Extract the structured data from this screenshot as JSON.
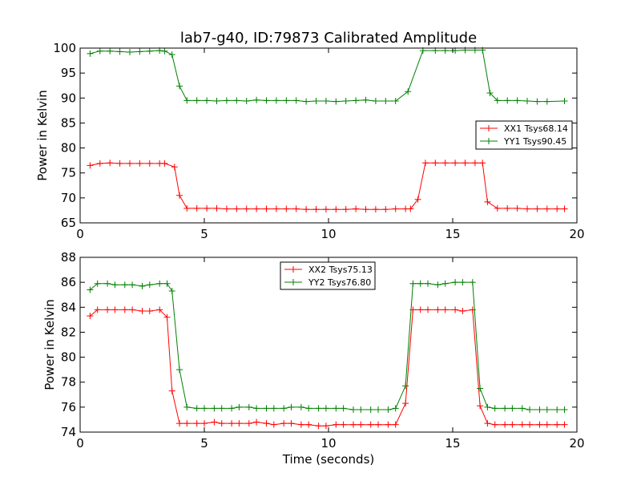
{
  "chart_data": [
    {
      "type": "line",
      "title": "lab7-g40, ID:79873 Calibrated Amplitude",
      "xlabel": "",
      "ylabel": "Power in Kelvin",
      "xlim": [
        0,
        20
      ],
      "ylim": [
        65,
        100
      ],
      "xticks": [
        0,
        5,
        10,
        15,
        20
      ],
      "yticks": [
        65,
        70,
        75,
        80,
        85,
        90,
        95,
        100
      ],
      "grid": false,
      "legend": "center-right",
      "x": [
        0.3,
        0.7,
        1.1,
        1.5,
        1.9,
        2.3,
        2.7,
        3.1,
        3.5,
        3.9,
        4.3,
        4.7,
        5.1,
        5.5,
        5.9,
        6.3,
        6.7,
        7.1,
        7.5,
        7.9,
        8.3,
        8.7,
        9.1,
        9.5,
        9.9,
        10.3,
        10.7,
        11.1,
        11.5,
        11.9,
        12.3,
        12.7,
        13.1,
        13.5,
        13.9,
        14.3,
        14.7,
        15.1,
        15.5,
        15.9,
        16.3,
        16.7,
        17.1,
        17.5,
        17.9,
        18.3,
        18.7,
        19.1,
        19.5
      ],
      "series": [
        {
          "name": "XX1 Tsys68.14",
          "color": "#ff0000",
          "values": [
            76.5,
            76.9,
            77.0,
            76.9,
            76.9,
            76.9,
            76.9,
            76.9,
            76.9,
            76.2,
            70.5,
            67.9,
            67.9,
            67.9,
            67.9,
            67.8,
            67.8,
            67.8,
            67.8,
            67.8,
            67.8,
            67.8,
            67.8,
            67.7,
            67.7,
            67.7,
            67.7,
            67.7,
            67.8,
            67.7,
            67.7,
            67.7,
            67.8,
            67.8,
            67.8,
            69.7,
            77.0,
            77.0,
            77.0,
            77.0,
            77.0,
            77.0,
            77.0,
            69.2,
            67.9,
            67.9,
            67.9,
            67.8,
            67.8,
            67.8,
            67.8,
            67.8
          ],
          "x": [
            0.4,
            0.8,
            1.2,
            1.6,
            2.0,
            2.4,
            2.8,
            3.2,
            3.4,
            3.8,
            4.0,
            4.3,
            4.7,
            5.1,
            5.5,
            5.9,
            6.3,
            6.7,
            7.1,
            7.5,
            7.9,
            8.3,
            8.7,
            9.1,
            9.5,
            9.9,
            10.3,
            10.7,
            11.1,
            11.5,
            11.9,
            12.3,
            12.7,
            13.1,
            13.3,
            13.6,
            13.9,
            14.3,
            14.7,
            15.1,
            15.5,
            15.9,
            16.2,
            16.4,
            16.8,
            17.2,
            17.6,
            18.0,
            18.4,
            18.8,
            19.2,
            19.5
          ]
        },
        {
          "name": "YY1 Tsys90.45",
          "color": "#008000",
          "values": [
            98.9,
            99.4,
            99.4,
            99.3,
            99.2,
            99.3,
            99.4,
            99.5,
            99.4,
            98.7,
            92.4,
            89.5,
            89.5,
            89.5,
            89.4,
            89.5,
            89.5,
            89.4,
            89.6,
            89.5,
            89.5,
            89.5,
            89.5,
            89.3,
            89.4,
            89.4,
            89.3,
            89.4,
            89.5,
            89.6,
            89.4,
            89.4,
            89.4,
            91.3,
            99.5,
            99.5,
            99.5,
            99.5,
            99.6,
            99.6,
            99.6,
            91.0,
            89.5,
            89.5,
            89.5,
            89.4,
            89.3,
            89.3,
            89.4
          ],
          "x": [
            0.4,
            0.8,
            1.2,
            1.6,
            2.0,
            2.4,
            2.8,
            3.2,
            3.4,
            3.7,
            4.0,
            4.3,
            4.7,
            5.1,
            5.5,
            5.9,
            6.3,
            6.7,
            7.1,
            7.5,
            7.9,
            8.3,
            8.7,
            9.1,
            9.5,
            9.9,
            10.3,
            10.7,
            11.1,
            11.5,
            11.9,
            12.3,
            12.7,
            13.2,
            13.8,
            14.3,
            14.7,
            15.1,
            15.5,
            15.9,
            16.2,
            16.5,
            16.8,
            17.2,
            17.6,
            18.0,
            18.4,
            18.8,
            19.5
          ]
        }
      ]
    },
    {
      "type": "line",
      "title": "",
      "xlabel": "Time (seconds)",
      "ylabel": "Power in Kelvin",
      "xlim": [
        0,
        20
      ],
      "ylim": [
        74,
        88
      ],
      "xticks": [
        0,
        5,
        10,
        15,
        20
      ],
      "yticks": [
        74,
        76,
        78,
        80,
        82,
        84,
        86,
        88
      ],
      "grid": false,
      "legend": "top-center",
      "series": [
        {
          "name": "XX2 Tsys75.13",
          "color": "#ff0000",
          "x": [
            0.4,
            0.7,
            1.1,
            1.4,
            1.8,
            2.1,
            2.5,
            2.8,
            3.2,
            3.5,
            3.7,
            4.0,
            4.3,
            4.7,
            5.0,
            5.4,
            5.7,
            6.1,
            6.4,
            6.8,
            7.1,
            7.5,
            7.8,
            8.2,
            8.5,
            8.9,
            9.2,
            9.6,
            9.9,
            10.3,
            10.6,
            11.0,
            11.3,
            11.7,
            12.0,
            12.4,
            12.7,
            13.1,
            13.4,
            13.7,
            14.0,
            14.4,
            14.7,
            15.1,
            15.4,
            15.8,
            16.1,
            16.4,
            16.7,
            17.1,
            17.4,
            17.8,
            18.1,
            18.5,
            18.8,
            19.2,
            19.5
          ],
          "values": [
            83.3,
            83.8,
            83.8,
            83.8,
            83.8,
            83.8,
            83.7,
            83.7,
            83.8,
            83.2,
            77.3,
            74.7,
            74.7,
            74.7,
            74.7,
            74.8,
            74.7,
            74.7,
            74.7,
            74.7,
            74.8,
            74.7,
            74.6,
            74.7,
            74.7,
            74.6,
            74.6,
            74.5,
            74.5,
            74.6,
            74.6,
            74.6,
            74.6,
            74.6,
            74.6,
            74.6,
            74.6,
            76.3,
            83.8,
            83.8,
            83.8,
            83.8,
            83.8,
            83.8,
            83.7,
            83.8,
            76.1,
            74.7,
            74.6,
            74.6,
            74.6,
            74.6,
            74.6,
            74.6,
            74.6,
            74.6,
            74.6
          ]
        },
        {
          "name": "YY2 Tsys76.80",
          "color": "#008000",
          "x": [
            0.4,
            0.7,
            1.1,
            1.4,
            1.8,
            2.1,
            2.5,
            2.8,
            3.2,
            3.5,
            3.7,
            4.0,
            4.3,
            4.7,
            5.0,
            5.4,
            5.7,
            6.1,
            6.4,
            6.8,
            7.1,
            7.5,
            7.8,
            8.2,
            8.5,
            8.9,
            9.2,
            9.6,
            9.9,
            10.3,
            10.6,
            11.0,
            11.3,
            11.7,
            12.0,
            12.4,
            12.7,
            13.1,
            13.4,
            13.7,
            14.0,
            14.4,
            14.7,
            15.1,
            15.4,
            15.8,
            16.1,
            16.4,
            16.7,
            17.1,
            17.4,
            17.8,
            18.1,
            18.5,
            18.8,
            19.2,
            19.5
          ],
          "values": [
            85.4,
            85.9,
            85.9,
            85.8,
            85.8,
            85.8,
            85.7,
            85.8,
            85.9,
            85.9,
            85.3,
            79.0,
            76.0,
            75.9,
            75.9,
            75.9,
            75.9,
            75.9,
            76.0,
            76.0,
            75.9,
            75.9,
            75.9,
            75.9,
            76.0,
            76.0,
            75.9,
            75.9,
            75.9,
            75.9,
            75.9,
            75.8,
            75.8,
            75.8,
            75.8,
            75.8,
            75.9,
            77.7,
            85.9,
            85.9,
            85.9,
            85.8,
            85.9,
            86.0,
            86.0,
            86.0,
            77.5,
            76.0,
            75.9,
            75.9,
            75.9,
            75.9,
            75.8,
            75.8,
            75.8,
            75.8,
            75.8
          ]
        }
      ]
    }
  ]
}
